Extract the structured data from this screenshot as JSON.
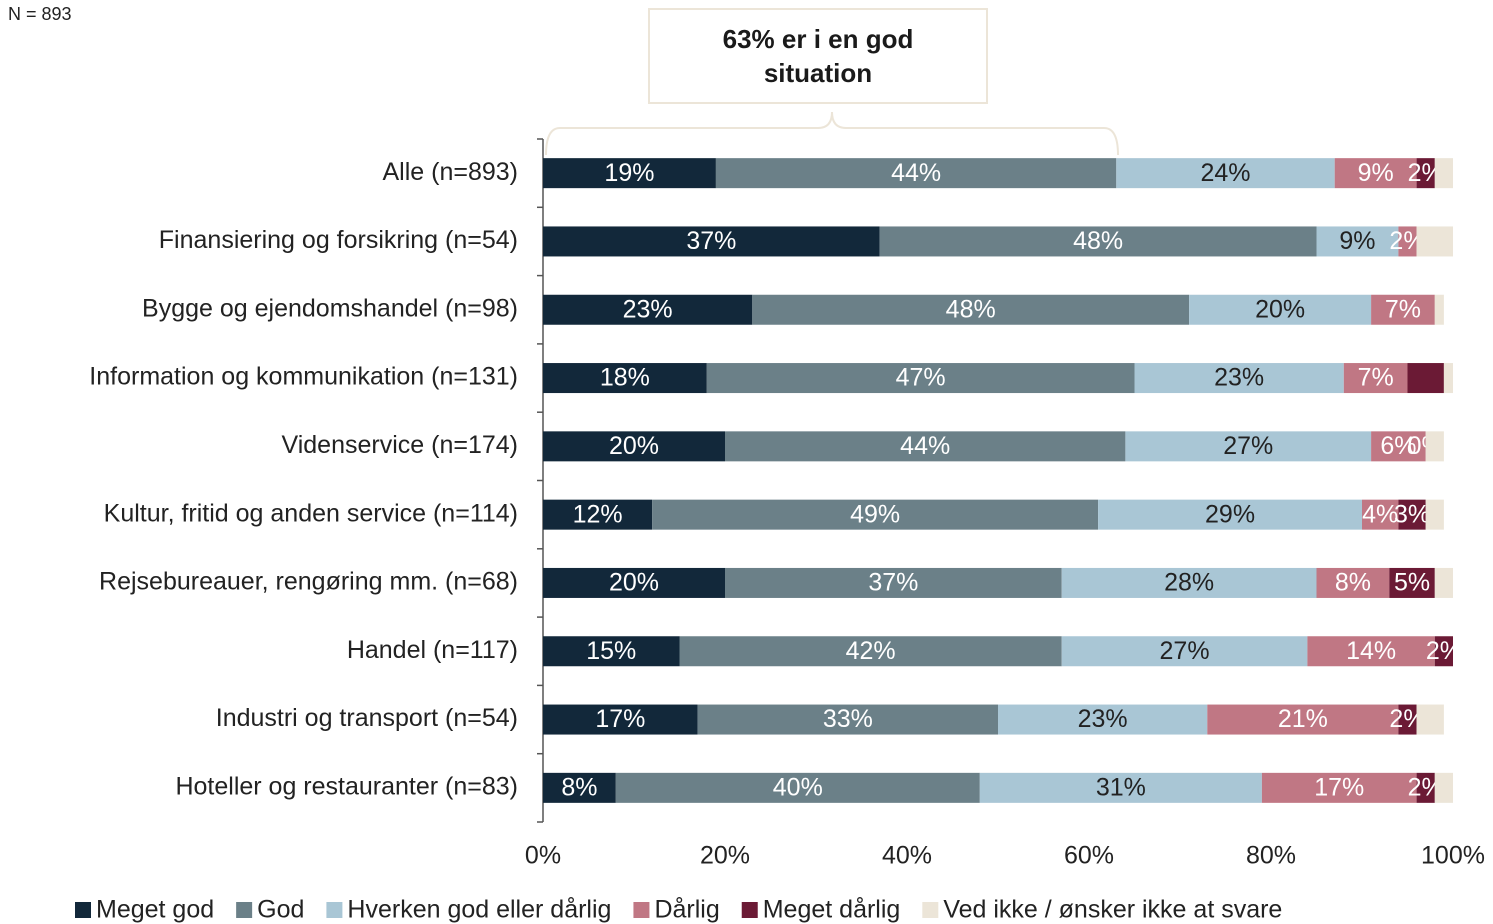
{
  "note": "N = 893",
  "chart_data": {
    "type": "stacked-bar-horizontal",
    "annotation": "63% er i en god situation",
    "categories": [
      "Alle (n=893)",
      "Finansiering og forsikring (n=54)",
      "Bygge og ejendomshandel (n=98)",
      "Information og kommunikation (n=131)",
      "Videnservice (n=174)",
      "Kultur, fritid og anden service (n=114)",
      "Rejsebureauer, rengøring mm. (n=68)",
      "Handel (n=117)",
      "Industri og transport (n=54)",
      "Hoteller og restauranter (n=83)"
    ],
    "series": [
      {
        "name": "Meget god",
        "color": "#12283a",
        "values": [
          19,
          37,
          23,
          18,
          20,
          12,
          20,
          15,
          17,
          8
        ],
        "value_labels": [
          "19%",
          "37%",
          "23%",
          "18%",
          "20%",
          "12%",
          "20%",
          "15%",
          "17%",
          "8%"
        ]
      },
      {
        "name": "God",
        "color": "#6b8088",
        "values": [
          44,
          48,
          48,
          47,
          44,
          49,
          37,
          42,
          33,
          40
        ],
        "value_labels": [
          "44%",
          "48%",
          "48%",
          "47%",
          "44%",
          "49%",
          "37%",
          "42%",
          "33%",
          "40%"
        ]
      },
      {
        "name": "Hverken god eller dårlig",
        "color": "#a9c6d5",
        "values": [
          24,
          9,
          20,
          23,
          27,
          29,
          28,
          27,
          23,
          31
        ],
        "value_labels": [
          "24%",
          "9%",
          "20%",
          "23%",
          "27%",
          "29%",
          "28%",
          "27%",
          "23%",
          "31%"
        ]
      },
      {
        "name": "Dårlig",
        "color": "#c07784",
        "values": [
          9,
          2,
          7,
          7,
          6,
          4,
          8,
          14,
          21,
          17
        ],
        "value_labels": [
          "9%",
          "2%",
          "7%",
          "7%",
          "6%",
          "4%",
          "8%",
          "14%",
          "21%",
          "17%"
        ]
      },
      {
        "name": "Meget dårlig",
        "color": "#6b1a35",
        "values": [
          2,
          0,
          0,
          4,
          0,
          3,
          5,
          2,
          2,
          2
        ],
        "value_labels": [
          "2%",
          null,
          null,
          null,
          "0%",
          "3%",
          "5%",
          "2%",
          "2%",
          "2%"
        ]
      },
      {
        "name": "Ved ikke / ønsker ikke at svare",
        "color": "#ece5d8",
        "values": [
          2,
          4,
          1,
          1,
          2,
          2,
          2,
          0,
          3,
          2
        ],
        "value_labels": [
          null,
          null,
          null,
          null,
          null,
          null,
          null,
          null,
          null,
          null
        ]
      }
    ],
    "xlim": [
      0,
      100
    ],
    "xticks": [
      {
        "value": 0,
        "label": "0%"
      },
      {
        "value": 20,
        "label": "20%"
      },
      {
        "value": 40,
        "label": "40%"
      },
      {
        "value": 60,
        "label": "60%"
      },
      {
        "value": 80,
        "label": "80%"
      },
      {
        "value": 100,
        "label": "100%"
      }
    ]
  }
}
